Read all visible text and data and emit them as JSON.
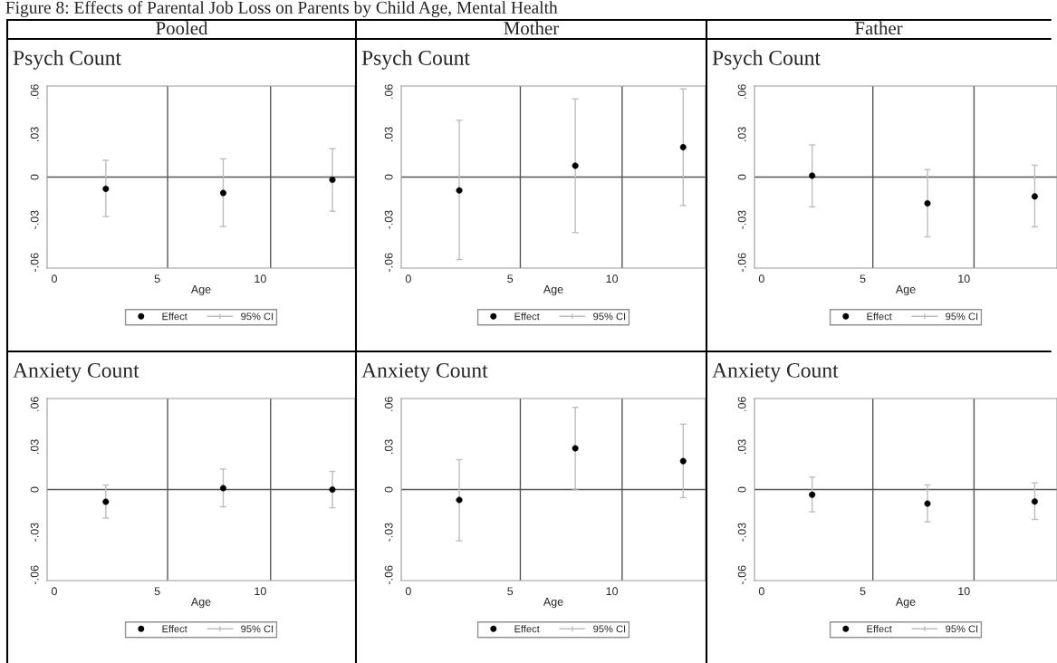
{
  "chart_data": [
    {
      "type": "scatter",
      "annotations": [
        "Figure 8: Effects of Parental Job Loss on Parents by Child Age, Mental Health"
      ],
      "subtitle": "Pooled",
      "title": "Psych Count",
      "xlabel": "Age",
      "x": [
        2.5,
        8.2,
        13.5
      ],
      "xlim": [
        -0.35,
        14.6
      ],
      "xticks": [
        0,
        5,
        10
      ],
      "ylim": [
        -0.064,
        0.064
      ],
      "yticks": [
        {
          "value": -0.06,
          "label": "-.06"
        },
        {
          "value": -0.03,
          "label": "-.03"
        },
        0,
        {
          "value": 0.03,
          "label": ".03"
        },
        {
          "value": 0.06,
          "label": ".06"
        }
      ],
      "ref_lines": [
        {
          "axis": "x",
          "value": 5.5,
          "color": "#555555"
        },
        {
          "axis": "x",
          "value": 10.5,
          "color": "#555555"
        },
        {
          "axis": "y",
          "value": 0,
          "color": "#555555"
        }
      ],
      "marker": "circle",
      "legend": "bottom",
      "series": [
        {
          "name": "Effect",
          "color": "#000000",
          "values": [
            -0.0083,
            -0.0112,
            -0.0019
          ],
          "errors": [
            [
              -0.0278,
              0.0118
            ],
            [
              -0.0348,
              0.0128
            ],
            [
              -0.024,
              0.02
            ]
          ]
        },
        {
          "name": "95% CI",
          "marker": "none",
          "color": "#bdbdbd",
          "values": [
            null,
            null,
            null
          ]
        }
      ]
    },
    {
      "type": "scatter",
      "subtitle": "Mother",
      "title": "Psych Count",
      "xlabel": "Age",
      "x": [
        2.5,
        8.2,
        13.5
      ],
      "xlim": [
        -0.35,
        14.6
      ],
      "xticks": [
        0,
        5,
        10
      ],
      "ylim": [
        -0.064,
        0.064
      ],
      "yticks": [
        {
          "value": -0.06,
          "label": "-.06"
        },
        {
          "value": -0.03,
          "label": "-.03"
        },
        0,
        {
          "value": 0.03,
          "label": ".03"
        },
        {
          "value": 0.06,
          "label": ".06"
        }
      ],
      "ref_lines": [
        {
          "axis": "x",
          "value": 5.5,
          "color": "#555555"
        },
        {
          "axis": "x",
          "value": 10.5,
          "color": "#555555"
        },
        {
          "axis": "y",
          "value": 0,
          "color": "#555555"
        }
      ],
      "marker": "circle",
      "legend": "bottom",
      "series": [
        {
          "name": "Effect",
          "color": "#000000",
          "values": [
            -0.0094,
            0.008,
            0.021
          ],
          "errors": [
            [
              -0.058,
              0.04
            ],
            [
              -0.039,
              0.055
            ],
            [
              -0.02,
              0.062
            ]
          ]
        },
        {
          "name": "95% CI",
          "marker": "none",
          "color": "#bdbdbd",
          "values": [
            null,
            null,
            null
          ]
        }
      ]
    },
    {
      "type": "scatter",
      "subtitle": "Father",
      "title": "Psych Count",
      "xlabel": "Age",
      "x": [
        2.5,
        8.2,
        13.5
      ],
      "xlim": [
        -0.35,
        14.6
      ],
      "xticks": [
        0,
        5,
        10
      ],
      "ylim": [
        -0.064,
        0.064
      ],
      "yticks": [
        {
          "value": -0.06,
          "label": "-.06"
        },
        {
          "value": -0.03,
          "label": "-.03"
        },
        0,
        {
          "value": 0.03,
          "label": ".03"
        },
        {
          "value": 0.06,
          "label": ".06"
        }
      ],
      "ref_lines": [
        {
          "axis": "x",
          "value": 5.5,
          "color": "#555555"
        },
        {
          "axis": "x",
          "value": 10.5,
          "color": "#555555"
        },
        {
          "axis": "y",
          "value": 0,
          "color": "#555555"
        }
      ],
      "marker": "circle",
      "legend": "bottom",
      "series": [
        {
          "name": "Effect",
          "color": "#000000",
          "values": [
            0.001,
            -0.0185,
            -0.0136
          ],
          "errors": [
            [
              -0.021,
              0.0226
            ],
            [
              -0.042,
              0.0053
            ],
            [
              -0.035,
              0.0083
            ]
          ]
        },
        {
          "name": "95% CI",
          "marker": "none",
          "color": "#bdbdbd",
          "values": [
            null,
            null,
            null
          ]
        }
      ]
    },
    {
      "type": "scatter",
      "title": "Anxiety Count",
      "xlabel": "Age",
      "x": [
        2.5,
        8.2,
        13.5
      ],
      "xlim": [
        -0.35,
        14.6
      ],
      "xticks": [
        0,
        5,
        10
      ],
      "ylim": [
        -0.064,
        0.064
      ],
      "yticks": [
        {
          "value": -0.06,
          "label": "-.06"
        },
        {
          "value": -0.03,
          "label": "-.03"
        },
        0,
        {
          "value": 0.03,
          "label": ".03"
        },
        {
          "value": 0.06,
          "label": ".06"
        }
      ],
      "ref_lines": [
        {
          "axis": "x",
          "value": 5.5,
          "color": "#555555"
        },
        {
          "axis": "x",
          "value": 10.5,
          "color": "#555555"
        },
        {
          "axis": "y",
          "value": 0,
          "color": "#555555"
        }
      ],
      "marker": "circle",
      "legend": "bottom",
      "series": [
        {
          "name": "Effect",
          "color": "#000000",
          "values": [
            -0.0086,
            0.001,
            0.0
          ],
          "errors": [
            [
              -0.02,
              0.0032
            ],
            [
              -0.0121,
              0.0144
            ],
            [
              -0.0128,
              0.0128
            ]
          ]
        },
        {
          "name": "95% CI",
          "marker": "none",
          "color": "#bdbdbd",
          "values": [
            null,
            null,
            null
          ]
        }
      ]
    },
    {
      "type": "scatter",
      "title": "Anxiety Count",
      "xlabel": "Age",
      "x": [
        2.5,
        8.2,
        13.5
      ],
      "xlim": [
        -0.35,
        14.6
      ],
      "xticks": [
        0,
        5,
        10
      ],
      "ylim": [
        -0.064,
        0.064
      ],
      "yticks": [
        {
          "value": -0.06,
          "label": "-.06"
        },
        {
          "value": -0.03,
          "label": "-.03"
        },
        0,
        {
          "value": 0.03,
          "label": ".03"
        },
        {
          "value": 0.06,
          "label": ".06"
        }
      ],
      "ref_lines": [
        {
          "axis": "x",
          "value": 5.5,
          "color": "#555555"
        },
        {
          "axis": "x",
          "value": 10.5,
          "color": "#555555"
        },
        {
          "axis": "y",
          "value": 0,
          "color": "#555555"
        }
      ],
      "marker": "circle",
      "legend": "bottom",
      "series": [
        {
          "name": "Effect",
          "color": "#000000",
          "values": [
            -0.0073,
            0.029,
            0.02
          ],
          "errors": [
            [
              -0.036,
              0.021
            ],
            [
              0.0003,
              0.0578
            ],
            [
              -0.0057,
              0.046
            ]
          ]
        },
        {
          "name": "95% CI",
          "marker": "none",
          "color": "#bdbdbd",
          "values": [
            null,
            null,
            null
          ]
        }
      ]
    },
    {
      "type": "scatter",
      "title": "Anxiety Count",
      "xlabel": "Age",
      "x": [
        2.5,
        8.2,
        13.5
      ],
      "xlim": [
        -0.35,
        14.6
      ],
      "xticks": [
        0,
        5,
        10
      ],
      "ylim": [
        -0.064,
        0.064
      ],
      "yticks": [
        {
          "value": -0.06,
          "label": "-.06"
        },
        {
          "value": -0.03,
          "label": "-.03"
        },
        0,
        {
          "value": 0.03,
          "label": ".03"
        },
        {
          "value": 0.06,
          "label": ".06"
        }
      ],
      "ref_lines": [
        {
          "axis": "x",
          "value": 5.5,
          "color": "#555555"
        },
        {
          "axis": "x",
          "value": 10.5,
          "color": "#555555"
        },
        {
          "axis": "y",
          "value": 0,
          "color": "#555555"
        }
      ],
      "marker": "circle",
      "legend": "bottom",
      "series": [
        {
          "name": "Effect",
          "color": "#000000",
          "values": [
            -0.0036,
            -0.0099,
            -0.0084
          ],
          "errors": [
            [
              -0.0156,
              0.0088
            ],
            [
              -0.0227,
              0.0032
            ],
            [
              -0.021,
              0.0047
            ]
          ]
        },
        {
          "name": "95% CI",
          "marker": "none",
          "color": "#bdbdbd",
          "values": [
            null,
            null,
            null
          ]
        }
      ]
    }
  ]
}
